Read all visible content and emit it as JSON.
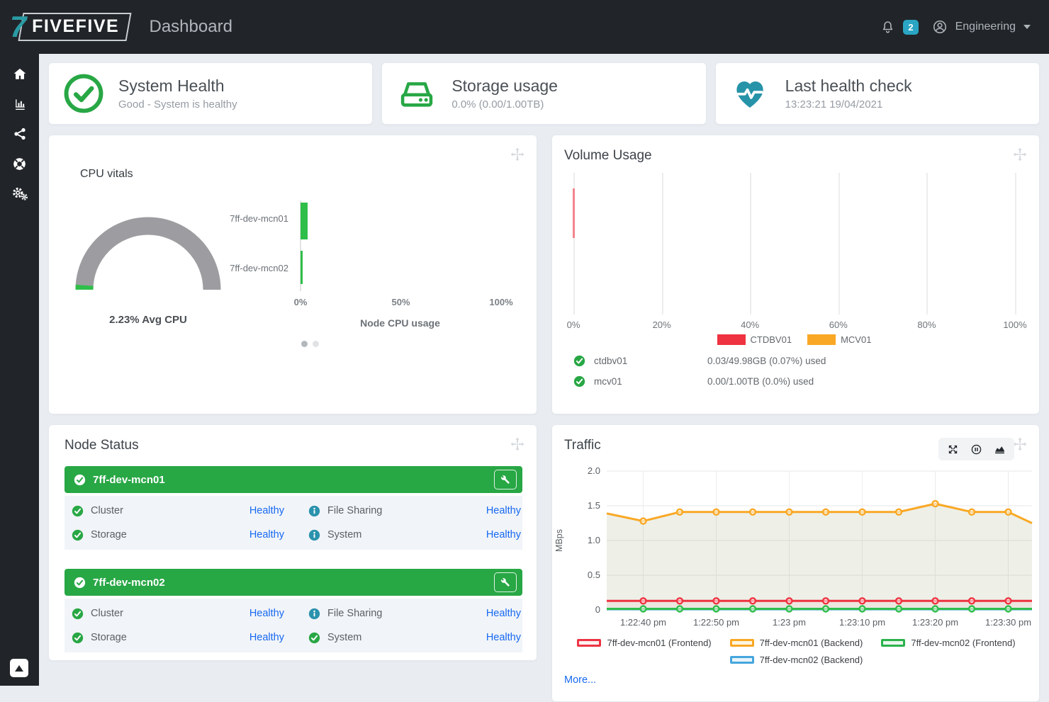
{
  "header": {
    "logo_seven": "7",
    "logo_text": "FIVEFIVE",
    "title": "Dashboard",
    "notification_count": "2",
    "user_menu_label": "Engineering"
  },
  "sidebar": {
    "items": [
      "home",
      "charts",
      "share",
      "support",
      "settings"
    ]
  },
  "summary_cards": {
    "system_health": {
      "title": "System Health",
      "subtitle": "Good - System is healthy"
    },
    "storage_usage": {
      "title": "Storage usage",
      "subtitle": "0.0% (0.00/1.00TB)"
    },
    "last_health_check": {
      "title": "Last health check",
      "subtitle": "13:23:21 19/04/2021"
    }
  },
  "cpu_panel": {
    "label": "CPU vitals",
    "gauge_label": "2.23% Avg CPU",
    "bar_title": "Node CPU usage"
  },
  "volume_panel": {
    "title": "Volume Usage",
    "volumes": [
      {
        "name": "ctdbv01",
        "usage": "0.03/49.98GB (0.07%) used"
      },
      {
        "name": "mcv01",
        "usage": "0.00/1.00TB (0.0%) used"
      }
    ]
  },
  "node_status_panel": {
    "title": "Node Status",
    "nodes": [
      {
        "name": "7ff-dev-mcn01",
        "services": [
          {
            "label": "Cluster",
            "icon": "check",
            "status": "Healthy"
          },
          {
            "label": "File Sharing",
            "icon": "info",
            "status": "Healthy"
          },
          {
            "label": "Storage",
            "icon": "check",
            "status": "Healthy"
          },
          {
            "label": "System",
            "icon": "info",
            "status": "Healthy"
          }
        ]
      },
      {
        "name": "7ff-dev-mcn02",
        "services": [
          {
            "label": "Cluster",
            "icon": "check",
            "status": "Healthy"
          },
          {
            "label": "File Sharing",
            "icon": "info",
            "status": "Healthy"
          },
          {
            "label": "Storage",
            "icon": "check",
            "status": "Healthy"
          },
          {
            "label": "System",
            "icon": "check",
            "status": "Healthy"
          }
        ]
      }
    ]
  },
  "traffic_panel": {
    "title": "Traffic",
    "more_label": "More..."
  },
  "colors": {
    "green": "#28a745",
    "bright_green": "#2fbe4a",
    "teal": "#2a9ba4",
    "badge_teal": "#2aa5c4",
    "info_teal": "#2a92ad",
    "link_blue": "#1769f2",
    "red": "#ef3340",
    "orange": "#f9a825",
    "sky_blue": "#41a0d8",
    "gauge_gray": "#9d9da1"
  },
  "chart_data": [
    {
      "id": "cpu_gauge",
      "type": "gauge",
      "value_pct": 2.23,
      "max": 100,
      "label": "2.23% Avg CPU"
    },
    {
      "id": "node_cpu",
      "type": "bar",
      "orientation": "horizontal",
      "title": "Node CPU usage",
      "categories": [
        "7ff-dev-mcn01",
        "7ff-dev-mcn02"
      ],
      "values": [
        3.6,
        0.9
      ],
      "xlim": [
        0,
        100
      ],
      "xticklabels": [
        "0%",
        "50%",
        "100%"
      ]
    },
    {
      "id": "volume_usage",
      "type": "bar",
      "orientation": "horizontal",
      "categories": [
        "CTDBV01",
        "MCV01"
      ],
      "values": [
        0.07,
        0.0
      ],
      "xlim": [
        0,
        100
      ],
      "xticklabels": [
        "0%",
        "20%",
        "40%",
        "60%",
        "80%",
        "100%"
      ],
      "colors": [
        "#ef3340",
        "#f9a825"
      ],
      "legend": [
        "CTDBV01",
        "MCV01"
      ]
    },
    {
      "id": "traffic",
      "type": "line",
      "ylabel": "MBps",
      "ylim": [
        0,
        2.0
      ],
      "yticks": [
        "2.0",
        "1.5",
        "1.0",
        "0.5",
        "0"
      ],
      "xticklabels": [
        "1:22:40 pm",
        "1:22:50 pm",
        "1:23 pm",
        "1:23:10 pm",
        "1:23:20 pm",
        "1:23:30 pm"
      ],
      "x_ticks_pos": [
        1,
        3,
        5,
        7,
        9,
        11
      ],
      "x_range": [
        0,
        11.65
      ],
      "x": [
        0,
        1,
        2,
        3,
        4,
        5,
        6,
        7,
        8,
        9,
        10,
        11,
        11.65
      ],
      "series": [
        {
          "name": "7ff-dev-mcn02 (Backend)",
          "color": "#41a0d8",
          "fill": "none",
          "markers": false,
          "values": [
            0.01,
            0.01,
            0.01,
            0.01,
            0.01,
            0.01,
            0.01,
            0.01,
            0.01,
            0.01,
            0.01,
            0.01,
            0.01
          ]
        },
        {
          "name": "7ff-dev-mcn01 (Backend)",
          "color": "#f9a825",
          "fill": "rgba(150,160,110,0.16)",
          "markers": true,
          "values": [
            1.39,
            1.28,
            1.41,
            1.41,
            1.41,
            1.41,
            1.41,
            1.41,
            1.41,
            1.53,
            1.41,
            1.41,
            1.25
          ]
        },
        {
          "name": "7ff-dev-mcn01 (Frontend)",
          "color": "#ef3340",
          "fill": "rgba(239,51,64,0.05)",
          "markers": true,
          "values": [
            0.13,
            0.13,
            0.13,
            0.13,
            0.13,
            0.13,
            0.13,
            0.13,
            0.13,
            0.13,
            0.13,
            0.13,
            0.13
          ]
        },
        {
          "name": "7ff-dev-mcn02 (Frontend)",
          "color": "#2fbe4a",
          "fill": "none",
          "markers": true,
          "values": [
            0.015,
            0.015,
            0.015,
            0.015,
            0.015,
            0.015,
            0.015,
            0.015,
            0.015,
            0.015,
            0.015,
            0.015,
            0.015
          ]
        }
      ],
      "legend_rows": [
        [
          {
            "label": "7ff-dev-mcn01 (Frontend)",
            "color": "#ed3444",
            "fill": "#fdf0f0"
          },
          {
            "label": "7ff-dev-mcn01 (Backend)",
            "color": "#f9a825",
            "fill": "#fdf5e0"
          },
          {
            "label": "7ff-dev-mcn02 (Frontend)",
            "color": "#2bb24c",
            "fill": "#eaf7ed"
          }
        ],
        [
          {
            "label": "7ff-dev-mcn02 (Backend)",
            "color": "#45a6dd",
            "fill": "#e8f4fb"
          }
        ]
      ],
      "legend_position": "bottom"
    }
  ]
}
